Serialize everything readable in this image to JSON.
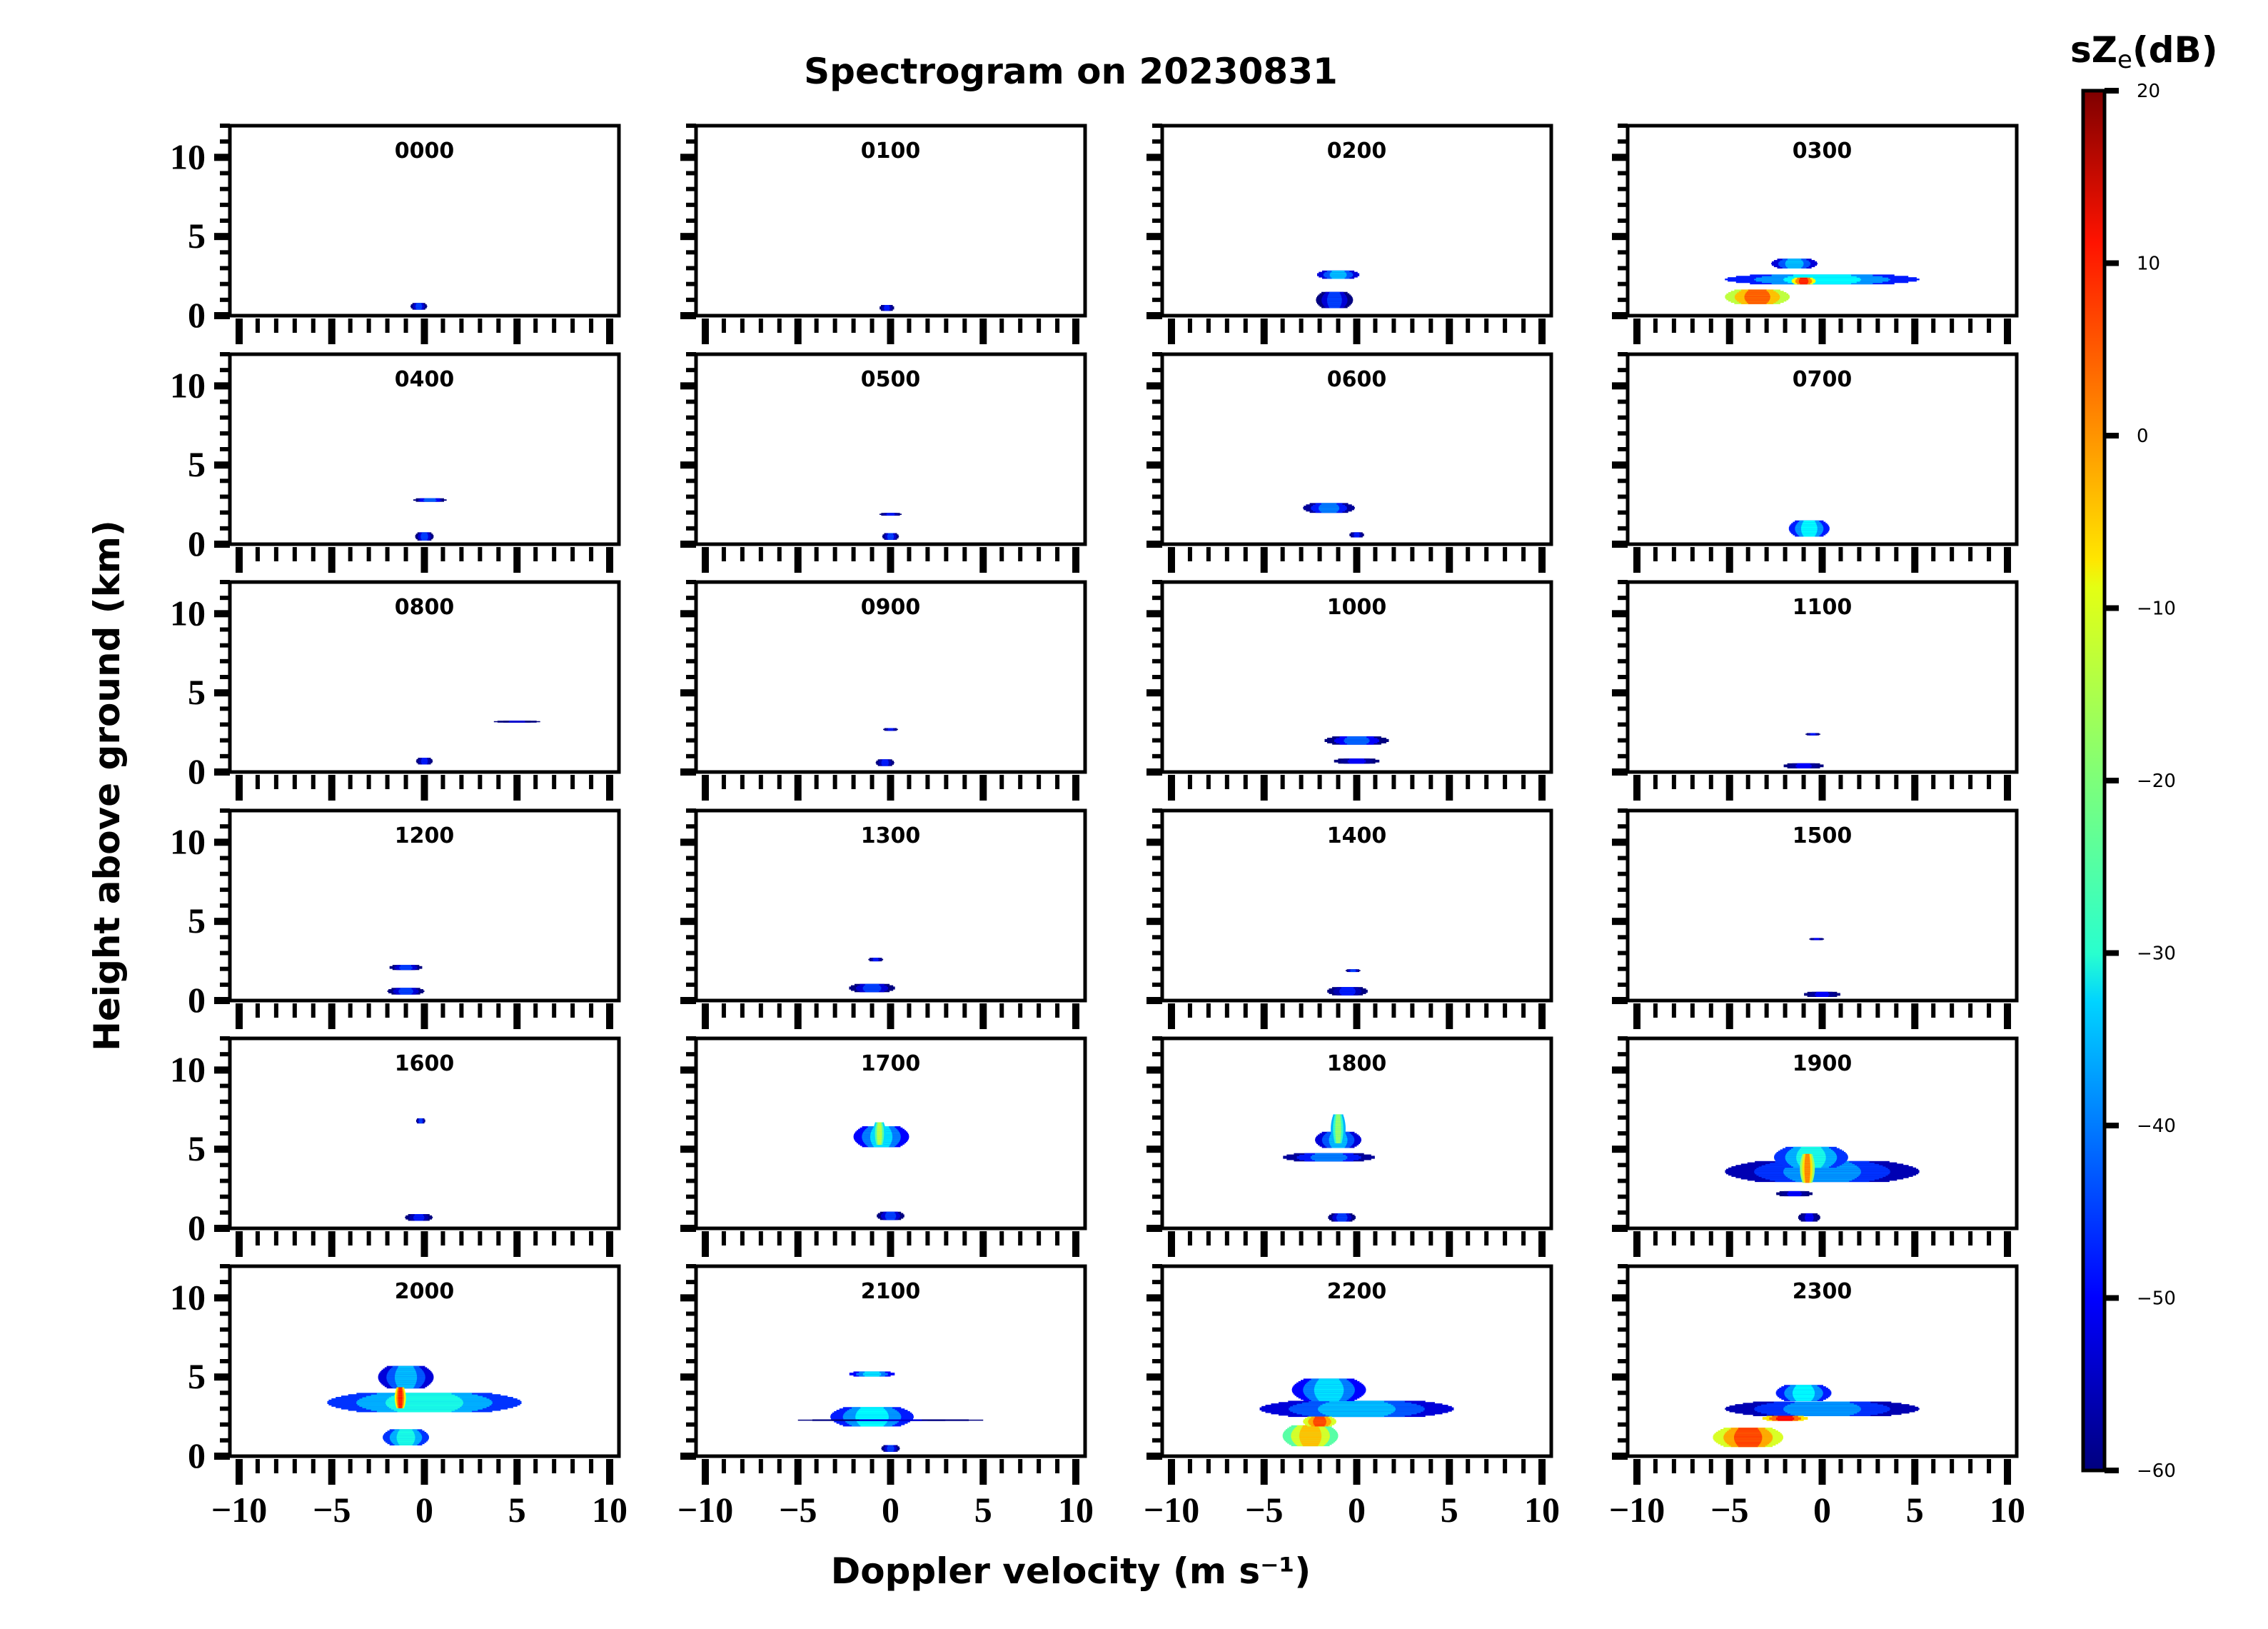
{
  "chart_data": {
    "type": "heatmap",
    "title": "Spectrogram on 20230831",
    "xlabel": "Doppler velocity (m s⁻¹)",
    "ylabel": "Height above ground (km)",
    "xlim": [
      -10.5,
      10.5
    ],
    "ylim": [
      0,
      12
    ],
    "x_ticks": [
      -10,
      -5,
      0,
      5,
      10
    ],
    "x_tick_labels": [
      "−10",
      "−5",
      "0",
      "5",
      "10"
    ],
    "y_ticks": [
      0,
      5,
      10
    ],
    "y_tick_labels": [
      "0",
      "5",
      "10"
    ],
    "grid": false,
    "colorbar": {
      "label_main": "sZ",
      "label_sub": "e",
      "label_unit": "(dB)",
      "range": [
        -60,
        20
      ],
      "ticks": [
        20,
        10,
        0,
        -10,
        -20,
        -30,
        -40,
        -50,
        -60
      ],
      "tick_labels": [
        "20",
        "10",
        "0",
        "−10",
        "−20",
        "−30",
        "−40",
        "−50",
        "−60"
      ],
      "colormap": "jet",
      "placement": "right"
    },
    "panels": [
      {
        "label": "0000",
        "blobs": [
          {
            "v": -0.3,
            "h": 0.6,
            "dv": 0.9,
            "dh": 0.4,
            "z": -45
          }
        ]
      },
      {
        "label": "0100",
        "blobs": [
          {
            "v": -0.2,
            "h": 0.5,
            "dv": 0.8,
            "dh": 0.35,
            "z": -48
          }
        ]
      },
      {
        "label": "0200",
        "blobs": [
          {
            "v": -1.0,
            "h": 2.6,
            "dv": 2.3,
            "dh": 0.5,
            "z": -35
          },
          {
            "v": -1.2,
            "h": 1.0,
            "dv": 2.0,
            "dh": 1.0,
            "z": -45
          }
        ]
      },
      {
        "label": "0300",
        "blobs": [
          {
            "v": 0,
            "h": 2.3,
            "dv": 10.5,
            "dh": 0.6,
            "z": -30
          },
          {
            "v": -1.5,
            "h": 3.3,
            "dv": 2.5,
            "dh": 0.6,
            "z": -35
          },
          {
            "v": -3.5,
            "h": 1.2,
            "dv": 3.5,
            "dh": 0.9,
            "z": 3
          },
          {
            "v": -1.0,
            "h": 2.2,
            "dv": 1.3,
            "dh": 0.4,
            "z": 8
          }
        ]
      },
      {
        "label": "0400",
        "blobs": [
          {
            "v": 0.3,
            "h": 2.8,
            "dv": 1.8,
            "dh": 0.2,
            "z": -42
          },
          {
            "v": 0,
            "h": 0.5,
            "dv": 1.0,
            "dh": 0.5,
            "z": -45
          }
        ]
      },
      {
        "label": "0500",
        "blobs": [
          {
            "v": 0,
            "h": 1.9,
            "dv": 1.2,
            "dh": 0.15,
            "z": -48
          },
          {
            "v": 0,
            "h": 0.5,
            "dv": 0.9,
            "dh": 0.4,
            "z": -45
          }
        ]
      },
      {
        "label": "0600",
        "blobs": [
          {
            "v": -1.5,
            "h": 2.3,
            "dv": 2.8,
            "dh": 0.6,
            "z": -40
          },
          {
            "v": 0,
            "h": 0.6,
            "dv": 0.8,
            "dh": 0.3,
            "z": -48
          }
        ]
      },
      {
        "label": "0700",
        "blobs": [
          {
            "v": -0.7,
            "h": 1.0,
            "dv": 2.2,
            "dh": 1.0,
            "z": -30
          }
        ]
      },
      {
        "label": "0800",
        "blobs": [
          {
            "v": 0,
            "h": 0.7,
            "dv": 0.9,
            "dh": 0.4,
            "z": -48
          },
          {
            "v": 5.0,
            "h": 3.2,
            "dv": 2.5,
            "dh": 0.08,
            "z": -52
          }
        ]
      },
      {
        "label": "0900",
        "blobs": [
          {
            "v": 0,
            "h": 2.7,
            "dv": 0.8,
            "dh": 0.15,
            "z": -48
          },
          {
            "v": -0.3,
            "h": 0.6,
            "dv": 1.0,
            "dh": 0.4,
            "z": -48
          }
        ]
      },
      {
        "label": "1000",
        "blobs": [
          {
            "v": 0,
            "h": 2.0,
            "dv": 3.5,
            "dh": 0.5,
            "z": -42
          },
          {
            "v": 0,
            "h": 0.7,
            "dv": 2.5,
            "dh": 0.3,
            "z": -50
          }
        ]
      },
      {
        "label": "1100",
        "blobs": [
          {
            "v": -0.5,
            "h": 2.4,
            "dv": 0.8,
            "dh": 0.12,
            "z": -48
          },
          {
            "v": -1.0,
            "h": 0.4,
            "dv": 2.2,
            "dh": 0.3,
            "z": -50
          }
        ]
      },
      {
        "label": "1200",
        "blobs": [
          {
            "v": -1.0,
            "h": 2.1,
            "dv": 1.8,
            "dh": 0.3,
            "z": -45
          },
          {
            "v": -1.0,
            "h": 0.6,
            "dv": 2.0,
            "dh": 0.4,
            "z": -45
          }
        ]
      },
      {
        "label": "1300",
        "blobs": [
          {
            "v": -0.8,
            "h": 2.6,
            "dv": 0.8,
            "dh": 0.2,
            "z": -48
          },
          {
            "v": -1.0,
            "h": 0.8,
            "dv": 2.5,
            "dh": 0.5,
            "z": -45
          }
        ]
      },
      {
        "label": "1400",
        "blobs": [
          {
            "v": -0.2,
            "h": 1.9,
            "dv": 0.8,
            "dh": 0.15,
            "z": -45
          },
          {
            "v": -0.5,
            "h": 0.6,
            "dv": 2.2,
            "dh": 0.5,
            "z": -48
          }
        ]
      },
      {
        "label": "1500",
        "blobs": [
          {
            "v": -0.3,
            "h": 3.9,
            "dv": 0.8,
            "dh": 0.1,
            "z": -50
          },
          {
            "v": 0,
            "h": 0.4,
            "dv": 2.0,
            "dh": 0.3,
            "z": -50
          }
        ]
      },
      {
        "label": "1600",
        "blobs": [
          {
            "v": -0.2,
            "h": 6.8,
            "dv": 0.5,
            "dh": 0.3,
            "z": -45
          },
          {
            "v": -0.3,
            "h": 0.7,
            "dv": 1.5,
            "dh": 0.4,
            "z": -48
          }
        ]
      },
      {
        "label": "1700",
        "blobs": [
          {
            "v": -0.5,
            "h": 5.8,
            "dv": 3.0,
            "dh": 1.3,
            "z": -32
          },
          {
            "v": -0.6,
            "h": 6.0,
            "dv": 0.7,
            "dh": 1.4,
            "z": -15
          },
          {
            "v": 0,
            "h": 0.8,
            "dv": 1.5,
            "dh": 0.5,
            "z": -45
          }
        ]
      },
      {
        "label": "1800",
        "blobs": [
          {
            "v": -1.5,
            "h": 4.5,
            "dv": 5.0,
            "dh": 0.5,
            "z": -40
          },
          {
            "v": -1.0,
            "h": 5.6,
            "dv": 2.5,
            "dh": 1.0,
            "z": -35
          },
          {
            "v": -1.0,
            "h": 6.3,
            "dv": 0.8,
            "dh": 1.8,
            "z": -18
          },
          {
            "v": -0.8,
            "h": 0.7,
            "dv": 1.5,
            "dh": 0.5,
            "z": -45
          }
        ]
      },
      {
        "label": "1900",
        "blobs": [
          {
            "v": 0,
            "h": 3.6,
            "dv": 10.5,
            "dh": 1.3,
            "z": -38
          },
          {
            "v": -0.6,
            "h": 4.5,
            "dv": 4.0,
            "dh": 1.3,
            "z": -28
          },
          {
            "v": -0.8,
            "h": 3.8,
            "dv": 0.8,
            "dh": 1.8,
            "z": 0
          },
          {
            "v": -1.5,
            "h": 2.2,
            "dv": 2.0,
            "dh": 0.3,
            "z": -50
          },
          {
            "v": -0.7,
            "h": 0.7,
            "dv": 1.2,
            "dh": 0.5,
            "z": -50
          }
        ]
      },
      {
        "label": "2000",
        "blobs": [
          {
            "v": 0,
            "h": 3.4,
            "dv": 10.5,
            "dh": 1.2,
            "z": -28
          },
          {
            "v": -1.0,
            "h": 5.0,
            "dv": 3.0,
            "dh": 1.4,
            "z": -35
          },
          {
            "v": -1.3,
            "h": 3.7,
            "dv": 0.6,
            "dh": 1.3,
            "z": 8
          },
          {
            "v": -1.0,
            "h": 1.2,
            "dv": 2.5,
            "dh": 1.0,
            "z": -28
          }
        ]
      },
      {
        "label": "2100",
        "blobs": [
          {
            "v": -1.0,
            "h": 5.2,
            "dv": 2.5,
            "dh": 0.3,
            "z": -32
          },
          {
            "v": -1.0,
            "h": 2.5,
            "dv": 4.5,
            "dh": 1.2,
            "z": -30
          },
          {
            "v": 0,
            "h": 2.3,
            "dv": 10.0,
            "dh": 0.05,
            "z": -52
          },
          {
            "v": 0,
            "h": 0.5,
            "dv": 1.0,
            "dh": 0.4,
            "z": -45
          }
        ]
      },
      {
        "label": "2200",
        "blobs": [
          {
            "v": 0,
            "h": 3.0,
            "dv": 10.5,
            "dh": 1.0,
            "z": -35
          },
          {
            "v": -1.5,
            "h": 4.2,
            "dv": 4.0,
            "dh": 1.4,
            "z": -32
          },
          {
            "v": -2.5,
            "h": 1.3,
            "dv": 3.0,
            "dh": 1.3,
            "z": -5
          },
          {
            "v": -2.0,
            "h": 2.2,
            "dv": 1.8,
            "dh": 0.6,
            "z": 5
          }
        ]
      },
      {
        "label": "2300",
        "blobs": [
          {
            "v": 0,
            "h": 3.0,
            "dv": 10.5,
            "dh": 0.9,
            "z": -38
          },
          {
            "v": -1.0,
            "h": 4.0,
            "dv": 3.0,
            "dh": 1.0,
            "z": -30
          },
          {
            "v": -4.0,
            "h": 1.2,
            "dv": 3.8,
            "dh": 1.2,
            "z": 5
          },
          {
            "v": -2.0,
            "h": 2.4,
            "dv": 2.5,
            "dh": 0.3,
            "z": 10
          }
        ]
      }
    ]
  }
}
